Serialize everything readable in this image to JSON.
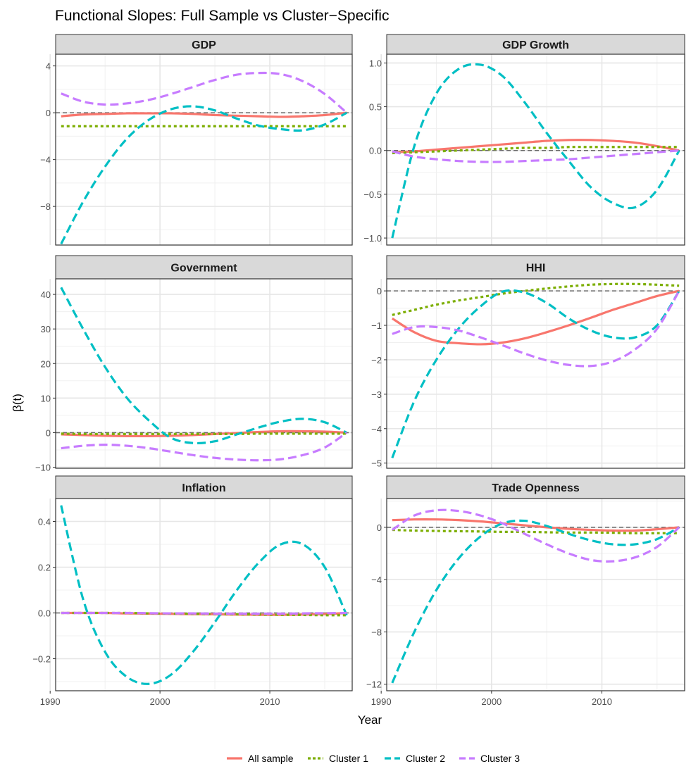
{
  "title": "Functional Slopes: Full Sample vs Cluster−Specific",
  "xlabel": "Year",
  "ylabel": "β(t)",
  "x_ticks": [
    1990,
    2000,
    2010
  ],
  "x_range": [
    1990.5,
    2017.5
  ],
  "legend": [
    {
      "name": "All sample",
      "color": "#F8766D",
      "dash": "solid"
    },
    {
      "name": "Cluster 1",
      "color": "#7CAE00",
      "dash": "dotted"
    },
    {
      "name": "Cluster 2",
      "color": "#00BFC4",
      "dash": "dashed"
    },
    {
      "name": "Cluster 3",
      "color": "#C77CFF",
      "dash": "dashed"
    }
  ],
  "chart_data": [
    {
      "type": "line",
      "title": "GDP",
      "ylim": [
        -11.3,
        5.0
      ],
      "yticks": [
        4,
        0,
        -4,
        -8
      ],
      "ytick_labels": [
        "4",
        "0",
        "−4",
        "−8"
      ],
      "x": [
        1991,
        1993,
        1995,
        1997,
        1999,
        2001,
        2003,
        2005,
        2007,
        2009,
        2011,
        2013,
        2015,
        2017
      ],
      "series": [
        {
          "name": "All sample",
          "values": [
            -0.3,
            -0.15,
            -0.1,
            -0.05,
            -0.05,
            -0.05,
            -0.1,
            -0.2,
            -0.25,
            -0.3,
            -0.35,
            -0.3,
            -0.2,
            0.0
          ]
        },
        {
          "name": "Cluster 1",
          "values": [
            -1.15,
            -1.15,
            -1.15,
            -1.15,
            -1.15,
            -1.15,
            -1.15,
            -1.15,
            -1.15,
            -1.15,
            -1.15,
            -1.15,
            -1.15,
            -1.15
          ]
        },
        {
          "name": "Cluster 2",
          "values": [
            -11.2,
            -7.6,
            -4.6,
            -2.2,
            -0.6,
            0.3,
            0.55,
            0.2,
            -0.5,
            -1.1,
            -1.4,
            -1.5,
            -1.0,
            0.0
          ]
        },
        {
          "name": "Cluster 3",
          "values": [
            1.65,
            0.95,
            0.7,
            0.8,
            1.1,
            1.6,
            2.2,
            2.8,
            3.25,
            3.4,
            3.3,
            2.7,
            1.6,
            0.0
          ]
        }
      ]
    },
    {
      "type": "line",
      "title": "GDP Growth",
      "ylim": [
        -1.08,
        1.1
      ],
      "yticks": [
        1.0,
        0.5,
        0.0,
        -0.5,
        -1.0
      ],
      "ytick_labels": [
        "1.0",
        "0.5",
        "0.0",
        "−0.5",
        "−1.0"
      ],
      "x": [
        1991,
        1993,
        1995,
        1997,
        1999,
        2001,
        2003,
        2005,
        2007,
        2009,
        2011,
        2013,
        2015,
        2017
      ],
      "series": [
        {
          "name": "All sample",
          "values": [
            -0.02,
            -0.01,
            0.01,
            0.03,
            0.05,
            0.07,
            0.09,
            0.11,
            0.12,
            0.12,
            0.11,
            0.09,
            0.05,
            0.0
          ]
        },
        {
          "name": "Cluster 1",
          "values": [
            -0.03,
            -0.02,
            -0.01,
            0.0,
            0.01,
            0.02,
            0.03,
            0.03,
            0.04,
            0.04,
            0.04,
            0.04,
            0.04,
            0.04
          ]
        },
        {
          "name": "Cluster 2",
          "values": [
            -1.0,
            0.05,
            0.65,
            0.93,
            0.98,
            0.85,
            0.55,
            0.2,
            -0.12,
            -0.42,
            -0.6,
            -0.65,
            -0.45,
            0.0
          ]
        },
        {
          "name": "Cluster 3",
          "values": [
            -0.01,
            -0.07,
            -0.1,
            -0.12,
            -0.13,
            -0.13,
            -0.12,
            -0.11,
            -0.1,
            -0.08,
            -0.06,
            -0.04,
            -0.02,
            0.0
          ]
        }
      ]
    },
    {
      "type": "line",
      "title": "Government",
      "ylim": [
        -10.3,
        44.5
      ],
      "yticks": [
        40,
        30,
        20,
        10,
        0,
        -10
      ],
      "ytick_labels": [
        "40",
        "30",
        "20",
        "10",
        "0",
        "−10"
      ],
      "x": [
        1991,
        1993,
        1995,
        1997,
        1999,
        2001,
        2003,
        2005,
        2007,
        2009,
        2011,
        2013,
        2015,
        2017
      ],
      "series": [
        {
          "name": "All sample",
          "values": [
            -0.5,
            -0.7,
            -0.9,
            -1.0,
            -1.0,
            -0.9,
            -0.7,
            -0.4,
            -0.1,
            0.2,
            0.4,
            0.4,
            0.3,
            0.0
          ]
        },
        {
          "name": "Cluster 1",
          "values": [
            -0.3,
            -0.4,
            -0.4,
            -0.4,
            -0.4,
            -0.4,
            -0.4,
            -0.4,
            -0.4,
            -0.3,
            -0.3,
            -0.3,
            -0.3,
            -0.3
          ]
        },
        {
          "name": "Cluster 2",
          "values": [
            42.0,
            30.0,
            19.0,
            10.0,
            3.5,
            -1.5,
            -3.0,
            -2.5,
            -0.5,
            1.5,
            3.2,
            4.0,
            3.0,
            0.0
          ]
        },
        {
          "name": "Cluster 3",
          "values": [
            -4.5,
            -3.8,
            -3.5,
            -3.8,
            -4.5,
            -5.5,
            -6.5,
            -7.3,
            -7.8,
            -8.0,
            -7.7,
            -6.5,
            -4.3,
            0.0
          ]
        }
      ]
    },
    {
      "type": "line",
      "title": "HHI",
      "ylim": [
        -5.15,
        0.35
      ],
      "yticks": [
        0,
        -1,
        -2,
        -3,
        -4,
        -5
      ],
      "ytick_labels": [
        "0",
        "−1",
        "−2",
        "−3",
        "−4",
        "−5"
      ],
      "x": [
        1991,
        1993,
        1995,
        1997,
        1999,
        2001,
        2003,
        2005,
        2007,
        2009,
        2011,
        2013,
        2015,
        2017
      ],
      "series": [
        {
          "name": "All sample",
          "values": [
            -0.8,
            -1.2,
            -1.45,
            -1.52,
            -1.55,
            -1.5,
            -1.38,
            -1.2,
            -1.0,
            -0.78,
            -0.55,
            -0.35,
            -0.15,
            0.0
          ]
        },
        {
          "name": "Cluster 1",
          "values": [
            -0.7,
            -0.55,
            -0.4,
            -0.28,
            -0.18,
            -0.08,
            0.0,
            0.07,
            0.13,
            0.18,
            0.2,
            0.2,
            0.18,
            0.15
          ]
        },
        {
          "name": "Cluster 2",
          "values": [
            -4.85,
            -3.2,
            -2.0,
            -1.1,
            -0.45,
            -0.02,
            -0.05,
            -0.35,
            -0.8,
            -1.15,
            -1.35,
            -1.35,
            -1.0,
            0.0
          ]
        },
        {
          "name": "Cluster 3",
          "values": [
            -1.25,
            -1.05,
            -1.05,
            -1.15,
            -1.35,
            -1.58,
            -1.82,
            -2.02,
            -2.15,
            -2.18,
            -2.05,
            -1.7,
            -1.1,
            0.0
          ]
        }
      ]
    },
    {
      "type": "line",
      "title": "Inflation",
      "ylim": [
        -0.34,
        0.5
      ],
      "yticks": [
        0.4,
        0.2,
        0.0,
        -0.2
      ],
      "ytick_labels": [
        "0.4",
        "0.2",
        "0.0",
        "−0.2"
      ],
      "x": [
        1991,
        1993,
        1995,
        1997,
        1999,
        2001,
        2003,
        2005,
        2007,
        2009,
        2011,
        2013,
        2015,
        2017
      ],
      "series": [
        {
          "name": "All sample",
          "values": [
            0.0,
            0.0,
            0.0,
            -0.002,
            -0.003,
            -0.004,
            -0.005,
            -0.006,
            -0.007,
            -0.008,
            -0.008,
            -0.007,
            -0.005,
            0.0
          ]
        },
        {
          "name": "Cluster 1",
          "values": [
            0.0,
            0.0,
            0.0,
            0.0,
            -0.002,
            -0.003,
            -0.004,
            -0.005,
            -0.006,
            -0.007,
            -0.008,
            -0.009,
            -0.01,
            -0.01
          ]
        },
        {
          "name": "Cluster 2",
          "values": [
            0.47,
            0.06,
            -0.17,
            -0.28,
            -0.31,
            -0.27,
            -0.17,
            -0.04,
            0.1,
            0.22,
            0.3,
            0.3,
            0.2,
            -0.01
          ]
        },
        {
          "name": "Cluster 3",
          "values": [
            0.0,
            0.0,
            0.0,
            0.0,
            -0.001,
            -0.002,
            -0.002,
            -0.003,
            -0.003,
            -0.003,
            -0.003,
            -0.002,
            -0.001,
            0.0
          ]
        }
      ]
    },
    {
      "type": "line",
      "title": "Trade Openness",
      "ylim": [
        -12.5,
        2.2
      ],
      "yticks": [
        0,
        -4,
        -8,
        -12
      ],
      "ytick_labels": [
        "0",
        "−4",
        "−8",
        "−12"
      ],
      "x": [
        1991,
        1993,
        1995,
        1997,
        1999,
        2001,
        2003,
        2005,
        2007,
        2009,
        2011,
        2013,
        2015,
        2017
      ],
      "series": [
        {
          "name": "All sample",
          "values": [
            0.55,
            0.6,
            0.6,
            0.55,
            0.45,
            0.3,
            0.15,
            0.0,
            -0.12,
            -0.2,
            -0.25,
            -0.25,
            -0.15,
            0.0
          ]
        },
        {
          "name": "Cluster 1",
          "values": [
            -0.2,
            -0.25,
            -0.28,
            -0.3,
            -0.32,
            -0.35,
            -0.35,
            -0.38,
            -0.4,
            -0.4,
            -0.42,
            -0.45,
            -0.45,
            -0.45
          ]
        },
        {
          "name": "Cluster 2",
          "values": [
            -11.9,
            -8.0,
            -4.8,
            -2.4,
            -0.7,
            0.3,
            0.5,
            0.1,
            -0.5,
            -1.0,
            -1.3,
            -1.3,
            -0.9,
            0.0
          ]
        },
        {
          "name": "Cluster 3",
          "values": [
            -0.2,
            0.9,
            1.3,
            1.25,
            0.9,
            0.3,
            -0.5,
            -1.3,
            -2.0,
            -2.5,
            -2.6,
            -2.3,
            -1.5,
            0.0
          ]
        }
      ]
    }
  ]
}
